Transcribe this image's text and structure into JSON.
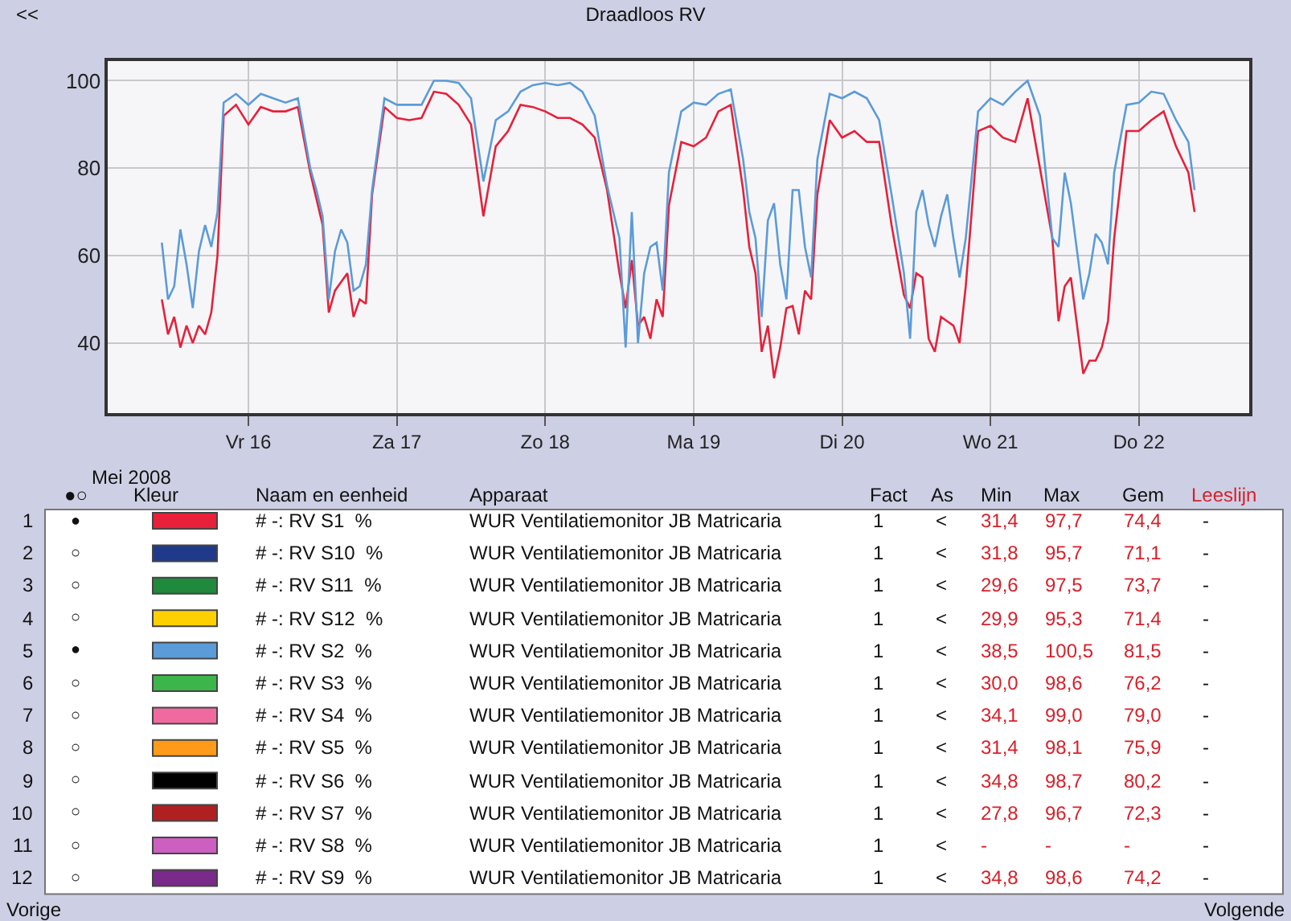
{
  "chart_data": {
    "type": "line",
    "title": "Draadloos RV",
    "x": [
      "2008-05-15T10:00",
      "2008-05-15T11:00",
      "2008-05-15T12:00",
      "2008-05-15T13:00",
      "2008-05-15T14:00",
      "2008-05-15T15:00",
      "2008-05-15T16:00",
      "2008-05-15T17:00",
      "2008-05-15T18:00",
      "2008-05-15T19:00",
      "2008-05-15T20:00",
      "2008-05-15T22:00",
      "2008-05-16T00:00",
      "2008-05-16T02:00",
      "2008-05-16T04:00",
      "2008-05-16T06:00",
      "2008-05-16T08:00",
      "2008-05-16T10:00",
      "2008-05-16T11:00",
      "2008-05-16T12:00",
      "2008-05-16T13:00",
      "2008-05-16T14:00",
      "2008-05-16T15:00",
      "2008-05-16T16:00",
      "2008-05-16T17:00",
      "2008-05-16T18:00",
      "2008-05-16T19:00",
      "2008-05-16T20:00",
      "2008-05-16T22:00",
      "2008-05-17T00:00",
      "2008-05-17T02:00",
      "2008-05-17T04:00",
      "2008-05-17T06:00",
      "2008-05-17T08:00",
      "2008-05-17T10:00",
      "2008-05-17T12:00",
      "2008-05-17T14:00",
      "2008-05-17T16:00",
      "2008-05-17T18:00",
      "2008-05-17T20:00",
      "2008-05-17T22:00",
      "2008-05-18T00:00",
      "2008-05-18T02:00",
      "2008-05-18T04:00",
      "2008-05-18T06:00",
      "2008-05-18T08:00",
      "2008-05-18T10:00",
      "2008-05-18T12:00",
      "2008-05-18T13:00",
      "2008-05-18T14:00",
      "2008-05-18T15:00",
      "2008-05-18T16:00",
      "2008-05-18T17:00",
      "2008-05-18T18:00",
      "2008-05-18T19:00",
      "2008-05-18T20:00",
      "2008-05-18T22:00",
      "2008-05-19T00:00",
      "2008-05-19T02:00",
      "2008-05-19T04:00",
      "2008-05-19T06:00",
      "2008-05-19T08:00",
      "2008-05-19T09:00",
      "2008-05-19T10:00",
      "2008-05-19T11:00",
      "2008-05-19T12:00",
      "2008-05-19T13:00",
      "2008-05-19T14:00",
      "2008-05-19T15:00",
      "2008-05-19T16:00",
      "2008-05-19T17:00",
      "2008-05-19T18:00",
      "2008-05-19T19:00",
      "2008-05-19T20:00",
      "2008-05-19T22:00",
      "2008-05-20T00:00",
      "2008-05-20T02:00",
      "2008-05-20T04:00",
      "2008-05-20T06:00",
      "2008-05-20T08:00",
      "2008-05-20T10:00",
      "2008-05-20T11:00",
      "2008-05-20T12:00",
      "2008-05-20T13:00",
      "2008-05-20T14:00",
      "2008-05-20T15:00",
      "2008-05-20T16:00",
      "2008-05-20T17:00",
      "2008-05-20T18:00",
      "2008-05-20T19:00",
      "2008-05-20T20:00",
      "2008-05-20T22:00",
      "2008-05-21T00:00",
      "2008-05-21T02:00",
      "2008-05-21T04:00",
      "2008-05-21T06:00",
      "2008-05-21T08:00",
      "2008-05-21T10:00",
      "2008-05-21T11:00",
      "2008-05-21T12:00",
      "2008-05-21T13:00",
      "2008-05-21T14:00",
      "2008-05-21T15:00",
      "2008-05-21T16:00",
      "2008-05-21T17:00",
      "2008-05-21T18:00",
      "2008-05-21T19:00",
      "2008-05-21T20:00",
      "2008-05-21T22:00",
      "2008-05-22T00:00",
      "2008-05-22T02:00",
      "2008-05-22T04:00",
      "2008-05-22T06:00",
      "2008-05-22T08:00",
      "2008-05-22T09:00"
    ],
    "series": [
      {
        "name": "# -: RV S1  %",
        "color": "#e8203a",
        "values": [
          50,
          42,
          46,
          39,
          44,
          40,
          44,
          42,
          47,
          60,
          92,
          94.5,
          90,
          94,
          93,
          93,
          94,
          79,
          73,
          67,
          47,
          52,
          54,
          56,
          46,
          50,
          49,
          74,
          94,
          91.5,
          91,
          91.5,
          97.5,
          97,
          94.5,
          90,
          69,
          85,
          88.5,
          94.5,
          94,
          93,
          91.5,
          91.5,
          90,
          87,
          75,
          56,
          48,
          59,
          44,
          46,
          41,
          50,
          46,
          71.5,
          86,
          85,
          87,
          93,
          94.5,
          75,
          62,
          56,
          38,
          44,
          32,
          39,
          48,
          48.5,
          42,
          52,
          50,
          74,
          91,
          87,
          88.5,
          86,
          86,
          67,
          51,
          48,
          56,
          55,
          41,
          38,
          46,
          45,
          44,
          40,
          53,
          88.5,
          89.7,
          87,
          86,
          96,
          80,
          64,
          45,
          53,
          55,
          44,
          33,
          36,
          36,
          39,
          45,
          64,
          88.5,
          88.5,
          91,
          93,
          85,
          79,
          70
        ]
      },
      {
        "name": "# -: RV S10  %",
        "color": "#1f3a8a",
        "values": [
          null,
          null,
          null,
          null,
          null,
          null,
          null,
          null,
          null,
          null,
          null,
          null,
          null,
          null,
          null,
          null,
          null,
          null,
          null,
          null,
          null,
          null,
          null,
          null,
          null,
          null,
          null,
          null,
          null,
          null,
          null,
          null,
          null,
          null,
          null,
          null,
          null,
          null,
          null,
          null,
          null,
          null,
          null,
          null,
          null,
          null,
          null,
          null,
          null,
          null,
          null,
          null,
          null,
          null,
          null,
          null,
          null,
          null,
          null,
          null,
          null,
          null,
          null,
          null,
          null,
          null,
          null,
          null,
          null,
          null,
          null,
          null,
          null,
          null,
          null,
          null,
          null,
          null,
          null,
          null,
          null,
          null,
          null,
          null,
          null,
          null,
          null,
          null,
          null,
          null,
          null,
          null,
          null,
          null,
          null,
          null,
          null,
          null,
          null,
          null,
          null,
          null,
          null,
          null,
          null,
          null,
          null,
          null,
          null,
          null,
          null,
          null,
          null,
          null,
          null
        ]
      },
      {
        "name": "# -: RV S11  %",
        "color": "#1f8a3c",
        "values": [
          null,
          null,
          null,
          null,
          null,
          null,
          null,
          null,
          null,
          null,
          null,
          null,
          null,
          null,
          null,
          null,
          null,
          null,
          null,
          null,
          null,
          null,
          null,
          null,
          null,
          null,
          null,
          null,
          null,
          null,
          null,
          null,
          null,
          null,
          null,
          null,
          null,
          null,
          null,
          null,
          null,
          null,
          null,
          null,
          null,
          null,
          null,
          null,
          null,
          null,
          null,
          null,
          null,
          null,
          null,
          null,
          null,
          null,
          null,
          null,
          null,
          null,
          null,
          null,
          null,
          null,
          null,
          null,
          null,
          null,
          null,
          null,
          null,
          null,
          null,
          null,
          null,
          null,
          null,
          null,
          null,
          null,
          null,
          null,
          null,
          null,
          null,
          null,
          null,
          null,
          null,
          null,
          null,
          null,
          null,
          null,
          null,
          null,
          null,
          null,
          null,
          null,
          null,
          null,
          null,
          null,
          null,
          null,
          null,
          null,
          null,
          null,
          null,
          null,
          null
        ]
      },
      {
        "name": "# -: RV S12  %",
        "color": "#ffd000",
        "values": [
          null,
          null,
          null,
          null,
          null,
          null,
          null,
          null,
          null,
          null,
          null,
          null,
          null,
          null,
          null,
          null,
          null,
          null,
          null,
          null,
          null,
          null,
          null,
          null,
          null,
          null,
          null,
          null,
          null,
          null,
          null,
          null,
          null,
          null,
          null,
          null,
          null,
          null,
          null,
          null,
          null,
          null,
          null,
          null,
          null,
          null,
          null,
          null,
          null,
          null,
          null,
          null,
          null,
          null,
          null,
          null,
          null,
          null,
          null,
          null,
          null,
          null,
          null,
          null,
          null,
          null,
          null,
          null,
          null,
          null,
          null,
          null,
          null,
          null,
          null,
          null,
          null,
          null,
          null,
          null,
          null,
          null,
          null,
          null,
          null,
          null,
          null,
          null,
          null,
          null,
          null,
          null,
          null,
          null,
          null,
          null,
          null,
          null,
          null,
          null,
          null,
          null,
          null,
          null,
          null,
          null,
          null,
          null,
          null,
          null,
          null,
          null,
          null,
          null,
          null
        ]
      },
      {
        "name": "# -: RV S2  %",
        "color": "#5b9bd8",
        "values": [
          63,
          50,
          53,
          66,
          58,
          48,
          61,
          67,
          62,
          70,
          95,
          97,
          94.5,
          97,
          96,
          95,
          96,
          80,
          75,
          69,
          50,
          61,
          66,
          63,
          52,
          53,
          58,
          75,
          96,
          94.5,
          94.5,
          94.5,
          100,
          100,
          99.5,
          96,
          77,
          91,
          93,
          97.5,
          99,
          99.5,
          99,
          99.5,
          97.5,
          92,
          76,
          64,
          39,
          70,
          40,
          56,
          62,
          63,
          52,
          79,
          93,
          95,
          94.5,
          97,
          98,
          82,
          70,
          64,
          46,
          68,
          72,
          58,
          50,
          75,
          75,
          62,
          55,
          82,
          97,
          96,
          97.5,
          96,
          91,
          74,
          56,
          41,
          70,
          75,
          67,
          62,
          69,
          74,
          64,
          55,
          64,
          93,
          96,
          94.5,
          97.5,
          100,
          92,
          64,
          62,
          79,
          72,
          61,
          50,
          56,
          65,
          63,
          58,
          79,
          94.5,
          95,
          97.5,
          97,
          91,
          86,
          75
        ]
      },
      {
        "name": "# -: RV S3  %",
        "color": "#3cb54a",
        "values": [
          null,
          null,
          null,
          null,
          null,
          null,
          null,
          null,
          null,
          null,
          null,
          null,
          null,
          null,
          null,
          null,
          null,
          null,
          null,
          null,
          null,
          null,
          null,
          null,
          null,
          null,
          null,
          null,
          null,
          null,
          null,
          null,
          null,
          null,
          null,
          null,
          null,
          null,
          null,
          null,
          null,
          null,
          null,
          null,
          null,
          null,
          null,
          null,
          null,
          null,
          null,
          null,
          null,
          null,
          null,
          null,
          null,
          null,
          null,
          null,
          null,
          null,
          null,
          null,
          null,
          null,
          null,
          null,
          null,
          null,
          null,
          null,
          null,
          null,
          null,
          null,
          null,
          null,
          null,
          null,
          null,
          null,
          null,
          null,
          null,
          null,
          null,
          null,
          null,
          null,
          null,
          null,
          null,
          null,
          null,
          null,
          null,
          null,
          null,
          null,
          null,
          null,
          null,
          null,
          null,
          null,
          null,
          null,
          null,
          null,
          null,
          null,
          null,
          null,
          null
        ]
      },
      {
        "name": "# -: RV S4  %",
        "color": "#f06aa0",
        "values": [
          null,
          null,
          null,
          null,
          null,
          null,
          null,
          null,
          null,
          null,
          null,
          null,
          null,
          null,
          null,
          null,
          null,
          null,
          null,
          null,
          null,
          null,
          null,
          null,
          null,
          null,
          null,
          null,
          null,
          null,
          null,
          null,
          null,
          null,
          null,
          null,
          null,
          null,
          null,
          null,
          null,
          null,
          null,
          null,
          null,
          null,
          null,
          null,
          null,
          null,
          null,
          null,
          null,
          null,
          null,
          null,
          null,
          null,
          null,
          null,
          null,
          null,
          null,
          null,
          null,
          null,
          null,
          null,
          null,
          null,
          null,
          null,
          null,
          null,
          null,
          null,
          null,
          null,
          null,
          null,
          null,
          null,
          null,
          null,
          null,
          null,
          null,
          null,
          null,
          null,
          null,
          null,
          null,
          null,
          null,
          null,
          null,
          null,
          null,
          null,
          null,
          null,
          null,
          null,
          null,
          null,
          null,
          null,
          null,
          null,
          null,
          null,
          null,
          null,
          null
        ]
      },
      {
        "name": "# -: RV S5  %",
        "color": "#ff9a1a",
        "values": [
          null,
          null,
          null,
          null,
          null,
          null,
          null,
          null,
          null,
          null,
          null,
          null,
          null,
          null,
          null,
          null,
          null,
          null,
          null,
          null,
          null,
          null,
          null,
          null,
          null,
          null,
          null,
          null,
          null,
          null,
          null,
          null,
          null,
          null,
          null,
          null,
          null,
          null,
          null,
          null,
          null,
          null,
          null,
          null,
          null,
          null,
          null,
          null,
          null,
          null,
          null,
          null,
          null,
          null,
          null,
          null,
          null,
          null,
          null,
          null,
          null,
          null,
          null,
          null,
          null,
          null,
          null,
          null,
          null,
          null,
          null,
          null,
          null,
          null,
          null,
          null,
          null,
          null,
          null,
          null,
          null,
          null,
          null,
          null,
          null,
          null,
          null,
          null,
          null,
          null,
          null,
          null,
          null,
          null,
          null,
          null,
          null,
          null,
          null,
          null,
          null,
          null,
          null,
          null,
          null,
          null,
          null,
          null,
          null,
          null,
          null,
          null,
          null,
          null,
          null
        ]
      },
      {
        "name": "# -: RV S6  %",
        "color": "#000000",
        "values": [
          null,
          null,
          null,
          null,
          null,
          null,
          null,
          null,
          null,
          null,
          null,
          null,
          null,
          null,
          null,
          null,
          null,
          null,
          null,
          null,
          null,
          null,
          null,
          null,
          null,
          null,
          null,
          null,
          null,
          null,
          null,
          null,
          null,
          null,
          null,
          null,
          null,
          null,
          null,
          null,
          null,
          null,
          null,
          null,
          null,
          null,
          null,
          null,
          null,
          null,
          null,
          null,
          null,
          null,
          null,
          null,
          null,
          null,
          null,
          null,
          null,
          null,
          null,
          null,
          null,
          null,
          null,
          null,
          null,
          null,
          null,
          null,
          null,
          null,
          null,
          null,
          null,
          null,
          null,
          null,
          null,
          null,
          null,
          null,
          null,
          null,
          null,
          null,
          null,
          null,
          null,
          null,
          null,
          null,
          null,
          null,
          null,
          null,
          null,
          null,
          null,
          null,
          null,
          null,
          null,
          null,
          null,
          null,
          null,
          null,
          null,
          null,
          null,
          null,
          null
        ]
      },
      {
        "name": "# -: RV S7  %",
        "color": "#b02020",
        "values": [
          null,
          null,
          null,
          null,
          null,
          null,
          null,
          null,
          null,
          null,
          null,
          null,
          null,
          null,
          null,
          null,
          null,
          null,
          null,
          null,
          null,
          null,
          null,
          null,
          null,
          null,
          null,
          null,
          null,
          null,
          null,
          null,
          null,
          null,
          null,
          null,
          null,
          null,
          null,
          null,
          null,
          null,
          null,
          null,
          null,
          null,
          null,
          null,
          null,
          null,
          null,
          null,
          null,
          null,
          null,
          null,
          null,
          null,
          null,
          null,
          null,
          null,
          null,
          null,
          null,
          null,
          null,
          null,
          null,
          null,
          null,
          null,
          null,
          null,
          null,
          null,
          null,
          null,
          null,
          null,
          null,
          null,
          null,
          null,
          null,
          null,
          null,
          null,
          null,
          null,
          null,
          null,
          null,
          null,
          null,
          null,
          null,
          null,
          null,
          null,
          null,
          null,
          null,
          null,
          null,
          null,
          null,
          null,
          null,
          null,
          null,
          null,
          null,
          null,
          null
        ]
      },
      {
        "name": "# -: RV S8  %",
        "color": "#cc5fbf",
        "values": [
          null,
          null,
          null,
          null,
          null,
          null,
          null,
          null,
          null,
          null,
          null,
          null,
          null,
          null,
          null,
          null,
          null,
          null,
          null,
          null,
          null,
          null,
          null,
          null,
          null,
          null,
          null,
          null,
          null,
          null,
          null,
          null,
          null,
          null,
          null,
          null,
          null,
          null,
          null,
          null,
          null,
          null,
          null,
          null,
          null,
          null,
          null,
          null,
          null,
          null,
          null,
          null,
          null,
          null,
          null,
          null,
          null,
          null,
          null,
          null,
          null,
          null,
          null,
          null,
          null,
          null,
          null,
          null,
          null,
          null,
          null,
          null,
          null,
          null,
          null,
          null,
          null,
          null,
          null,
          null,
          null,
          null,
          null,
          null,
          null,
          null,
          null,
          null,
          null,
          null,
          null,
          null,
          null,
          null,
          null,
          null,
          null,
          null,
          null,
          null,
          null,
          null,
          null,
          null,
          null,
          null,
          null,
          null,
          null,
          null,
          null,
          null,
          null,
          null,
          null
        ]
      },
      {
        "name": "# -: RV S9  %",
        "color": "#7a2a8a",
        "values": [
          null,
          null,
          null,
          null,
          null,
          null,
          null,
          null,
          null,
          null,
          null,
          null,
          null,
          null,
          null,
          null,
          null,
          null,
          null,
          null,
          null,
          null,
          null,
          null,
          null,
          null,
          null,
          null,
          null,
          null,
          null,
          null,
          null,
          null,
          null,
          null,
          null,
          null,
          null,
          null,
          null,
          null,
          null,
          null,
          null,
          null,
          null,
          null,
          null,
          null,
          null,
          null,
          null,
          null,
          null,
          null,
          null,
          null,
          null,
          null,
          null,
          null,
          null,
          null,
          null,
          null,
          null,
          null,
          null,
          null,
          null,
          null,
          null,
          null,
          null,
          null,
          null,
          null,
          null,
          null,
          null,
          null,
          null,
          null,
          null,
          null,
          null,
          null,
          null,
          null,
          null,
          null,
          null,
          null,
          null,
          null,
          null,
          null,
          null,
          null,
          null,
          null,
          null,
          null,
          null,
          null,
          null,
          null,
          null,
          null,
          null,
          null,
          null,
          null,
          null
        ]
      }
    ],
    "xlim": [
      "2008-05-15T01:15",
      "2008-05-22T17:50"
    ],
    "xticks": [
      {
        "value": "2008-05-16",
        "label": "Vr 16"
      },
      {
        "value": "2008-05-17",
        "label": "Za 17"
      },
      {
        "value": "2008-05-18",
        "label": "Zo 18"
      },
      {
        "value": "2008-05-19",
        "label": "Ma 19"
      },
      {
        "value": "2008-05-20",
        "label": "Di 20"
      },
      {
        "value": "2008-05-21",
        "label": "Wo 21"
      },
      {
        "value": "2008-05-22",
        "label": "Do 22"
      }
    ],
    "ylim": [
      24,
      104.5
    ],
    "yticks": [
      40,
      60,
      80,
      100
    ],
    "grid": true,
    "legend": "bottom",
    "annotations": [
      "<<",
      "Mei 2008",
      "Vorige",
      "Volgende",
      "●○",
      "Kleur",
      "Naam en eenheid",
      "Apparaat",
      "Fact",
      "As",
      "Min",
      "Max",
      "Gem",
      "Leeslijn",
      "1",
      "●",
      "WUR Ventilatiemonitor JB Matricaria",
      "1",
      "<",
      "31,4",
      "97,7",
      "74,4",
      "-",
      "2",
      "○",
      "WUR Ventilatiemonitor JB Matricaria",
      "1",
      "<",
      "31,8",
      "95,7",
      "71,1",
      "-",
      "3",
      "○",
      "WUR Ventilatiemonitor JB Matricaria",
      "1",
      "<",
      "29,6",
      "97,5",
      "73,7",
      "-",
      "4",
      "○",
      "WUR Ventilatiemonitor JB Matricaria",
      "1",
      "<",
      "29,9",
      "95,3",
      "71,4",
      "-",
      "5",
      "●",
      "WUR Ventilatiemonitor JB Matricaria",
      "1",
      "<",
      "38,5",
      "100,5",
      "81,5",
      "-",
      "6",
      "○",
      "WUR Ventilatiemonitor JB Matricaria",
      "1",
      "<",
      "30,0",
      "98,6",
      "76,2",
      "-",
      "7",
      "○",
      "WUR Ventilatiemonitor JB Matricaria",
      "1",
      "<",
      "34,1",
      "99,0",
      "79,0",
      "-",
      "8",
      "○",
      "WUR Ventilatiemonitor JB Matricaria",
      "1",
      "<",
      "31,4",
      "98,1",
      "75,9",
      "-",
      "9",
      "○",
      "WUR Ventilatiemonitor JB Matricaria",
      "1",
      "<",
      "34,8",
      "98,7",
      "80,2",
      "-",
      "10",
      "○",
      "WUR Ventilatiemonitor JB Matricaria",
      "1",
      "<",
      "27,8",
      "96,7",
      "72,3",
      "-",
      "11",
      "○",
      "WUR Ventilatiemonitor JB Matricaria",
      "1",
      "<",
      "-",
      "-",
      "-",
      "-",
      "12",
      "○",
      "WUR Ventilatiemonitor JB Matricaria",
      "1",
      "<",
      "34,8",
      "98,6",
      "74,2",
      "-"
    ]
  }
}
